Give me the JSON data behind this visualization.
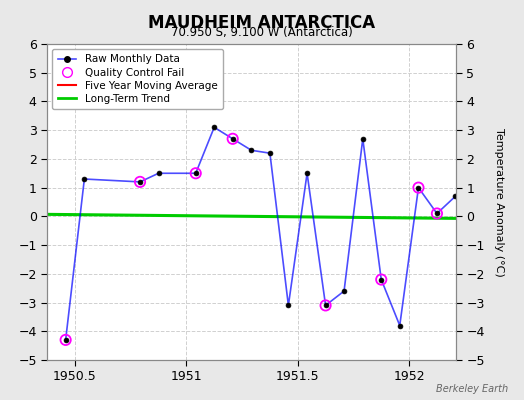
{
  "title": "MAUDHEIM ANTARCTICA",
  "subtitle": "70.950 S, 9.100 W (Antarctica)",
  "ylabel": "Temperature Anomaly (°C)",
  "watermark": "Berkeley Earth",
  "xlim": [
    1950.375,
    1952.21
  ],
  "ylim": [
    -5,
    6
  ],
  "yticks": [
    -5,
    -4,
    -3,
    -2,
    -1,
    0,
    1,
    2,
    3,
    4,
    5,
    6
  ],
  "xticks": [
    1950.5,
    1951.0,
    1951.5,
    1952.0
  ],
  "xticklabels": [
    "1950.5",
    "1951",
    "1951.5",
    "1952"
  ],
  "raw_x": [
    1950.458,
    1950.542,
    1950.792,
    1950.875,
    1951.042,
    1951.125,
    1951.208,
    1951.292,
    1951.375,
    1951.458,
    1951.542,
    1951.625,
    1951.708,
    1951.792,
    1951.875,
    1951.958,
    1952.042,
    1952.125,
    1952.208
  ],
  "raw_y": [
    -4.3,
    1.3,
    1.2,
    1.5,
    1.5,
    3.1,
    2.7,
    2.3,
    2.2,
    -3.1,
    1.5,
    -3.1,
    -2.6,
    2.7,
    -2.2,
    -3.8,
    1.0,
    0.1,
    0.7
  ],
  "qc_fail_x": [
    1950.458,
    1950.792,
    1951.042,
    1951.208,
    1951.625,
    1951.875,
    1952.042,
    1952.125
  ],
  "qc_fail_y": [
    -4.3,
    1.2,
    1.5,
    2.7,
    -3.1,
    -2.2,
    1.0,
    0.1
  ],
  "trend_x": [
    1950.375,
    1952.21
  ],
  "trend_y": [
    0.07,
    -0.07
  ],
  "line_color": "#0000ff",
  "line_color_alpha": 0.6,
  "marker_color": "#000000",
  "qc_color": "#ff00ff",
  "trend_color": "#00cc00",
  "avg_color": "#ff0000",
  "plot_bg_color": "#ffffff",
  "fig_bg_color": "#e8e8e8",
  "grid_color": "#d0d0d0"
}
